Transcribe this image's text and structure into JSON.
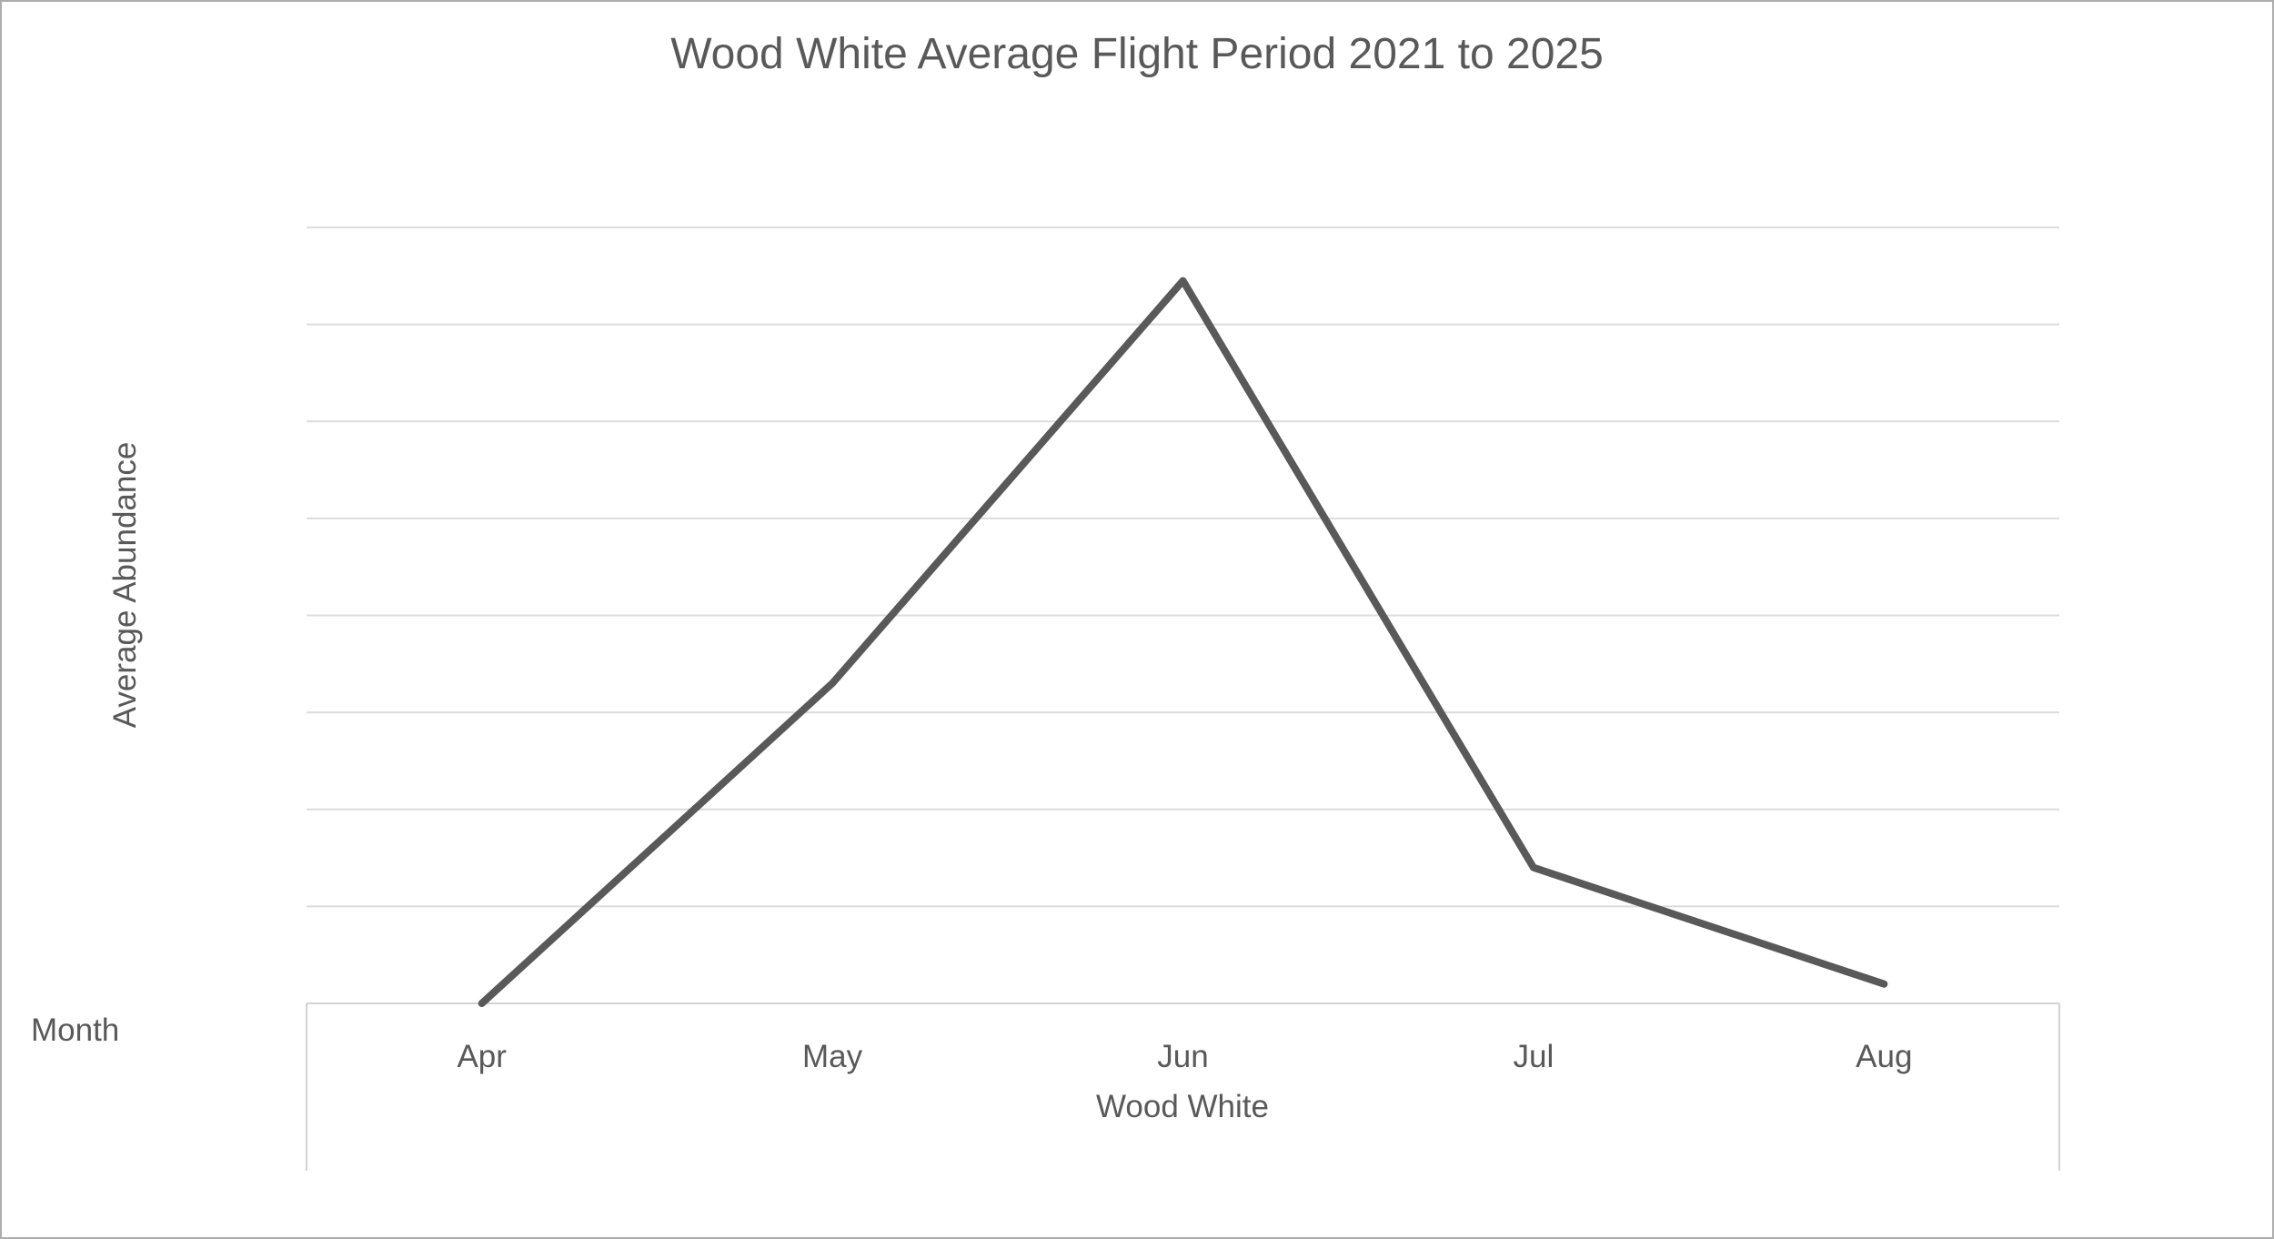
{
  "window": {
    "background": "#FFFFFF",
    "border_color": "#ADADAD"
  },
  "chart_data": {
    "type": "line",
    "title": "Wood White Average Flight Period 2021 to 2025",
    "categories": [
      "Apr",
      "May",
      "Jun",
      "Jul",
      "Aug"
    ],
    "series": [
      {
        "name": "Wood White",
        "values": [
          0,
          3.3,
          7.45,
          1.4,
          0.2
        ]
      }
    ],
    "group_label": "Wood White",
    "xlabel": "Month",
    "ylabel": "Average Abundance",
    "ylim": [
      0,
      8
    ],
    "y_major_unit": 1,
    "y_tick_labels_visible": false,
    "grid": true,
    "legend_position": "none",
    "line_color": "#595959",
    "line_width": 8,
    "gridline_color": "#DCDCDC",
    "axis_line_color": "#D3D3D3",
    "text_color": "#595959"
  }
}
